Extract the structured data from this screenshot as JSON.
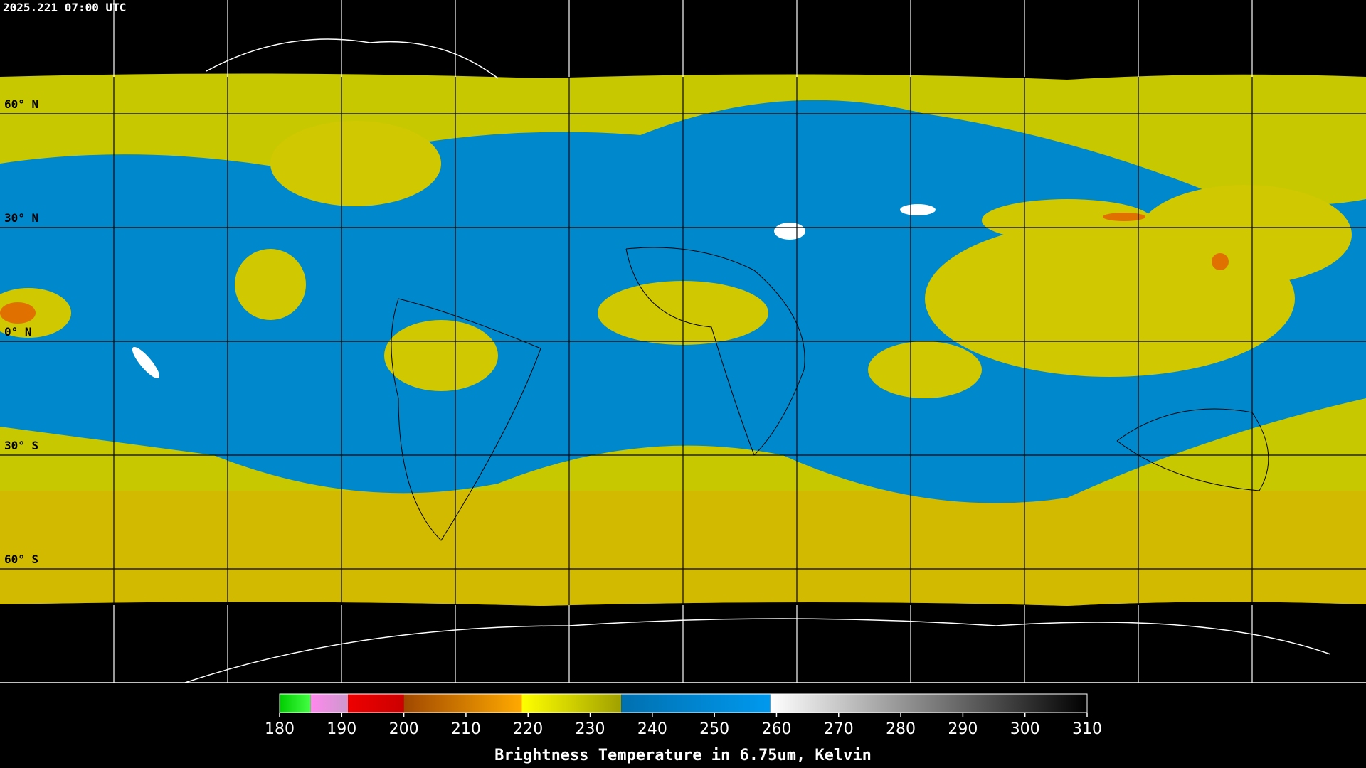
{
  "header": {
    "timestamp": "2025.221 07:00 UTC"
  },
  "map": {
    "latitude_lines": [
      {
        "value": 60,
        "label": "60° N"
      },
      {
        "value": 30,
        "label": "30° N"
      },
      {
        "value": 0,
        "label": "0° N"
      },
      {
        "value": -30,
        "label": "30° S"
      },
      {
        "value": -60,
        "label": "60° S"
      }
    ]
  },
  "colorbar": {
    "title": "Brightness Temperature in 6.75um, Kelvin",
    "range": [
      180,
      310
    ],
    "ticks": [
      180,
      190,
      200,
      210,
      220,
      230,
      240,
      250,
      260,
      270,
      280,
      290,
      300,
      310
    ],
    "segments": [
      {
        "from": 180,
        "to": 185,
        "colors": [
          "#00cc00",
          "#44ff44"
        ]
      },
      {
        "from": 185,
        "to": 191,
        "colors": [
          "#ff88ee",
          "#cc99cc"
        ]
      },
      {
        "from": 191,
        "to": 200,
        "colors": [
          "#ee0000",
          "#cc0000"
        ]
      },
      {
        "from": 200,
        "to": 219,
        "colors": [
          "#a04800",
          "#ffaa00"
        ]
      },
      {
        "from": 219,
        "to": 235,
        "colors": [
          "#ffff00",
          "#a0a000"
        ]
      },
      {
        "from": 235,
        "to": 259,
        "colors": [
          "#0070b0",
          "#0099ee"
        ]
      },
      {
        "from": 259,
        "to": 310,
        "colors": [
          "#ffffff",
          "#000000"
        ]
      }
    ]
  }
}
